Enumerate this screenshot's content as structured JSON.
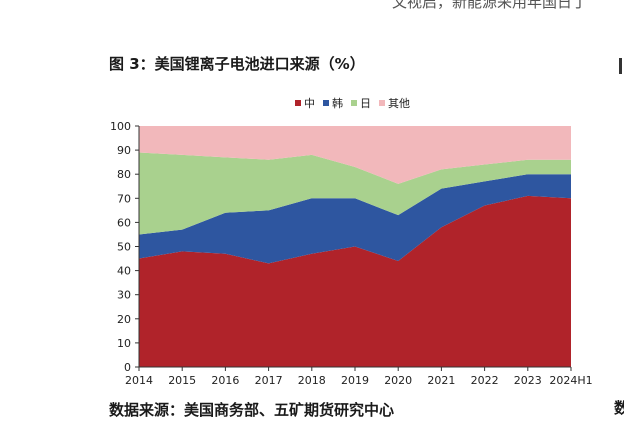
{
  "page": {
    "header_text": "文视启，新能源采用年国日丁",
    "title": "图 3：美国锂离子电池进口来源（%）",
    "source": "数据来源：美国商务部、五矿期货研究中心",
    "edge_bottom": "数"
  },
  "chart_data": {
    "type": "area",
    "stacked": true,
    "categories": [
      "2014",
      "2015",
      "2016",
      "2017",
      "2018",
      "2019",
      "2020",
      "2021",
      "2022",
      "2023",
      "2024H1"
    ],
    "series": [
      {
        "name": "中",
        "color": "#b0232a",
        "values": [
          45,
          48,
          47,
          43,
          47,
          50,
          44,
          58,
          67,
          71,
          70
        ]
      },
      {
        "name": "韩",
        "color": "#2e56a0",
        "values": [
          10,
          9,
          17,
          22,
          23,
          20,
          19,
          16,
          10,
          9,
          10
        ]
      },
      {
        "name": "日",
        "color": "#a9d18e",
        "values": [
          34,
          31,
          23,
          21,
          18,
          13,
          13,
          8,
          7,
          6,
          6
        ]
      },
      {
        "name": "其他",
        "color": "#f2b8bb",
        "values": [
          11,
          12,
          13,
          14,
          12,
          17,
          24,
          18,
          16,
          14,
          14
        ]
      }
    ],
    "ylim": [
      0,
      100
    ],
    "yticks": [
      0,
      10,
      20,
      30,
      40,
      50,
      60,
      70,
      80,
      90,
      100
    ],
    "legend_position": "top-center",
    "grid": false
  }
}
